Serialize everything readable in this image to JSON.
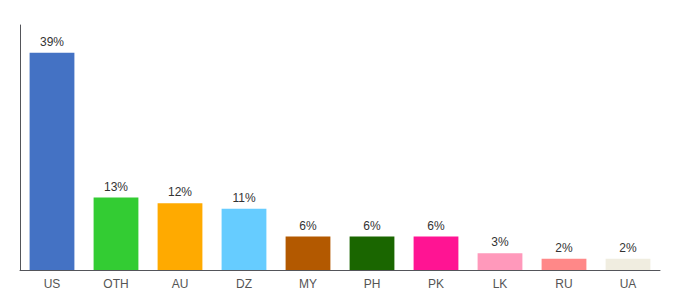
{
  "chart_data": {
    "type": "bar",
    "categories": [
      "US",
      "OTH",
      "AU",
      "DZ",
      "MY",
      "PH",
      "PK",
      "LK",
      "RU",
      "UA"
    ],
    "values": [
      39,
      13,
      12,
      11,
      6,
      6,
      6,
      3,
      2,
      2
    ],
    "value_labels": [
      "39%",
      "13%",
      "12%",
      "11%",
      "6%",
      "6%",
      "6%",
      "3%",
      "2%",
      "2%"
    ],
    "colors": [
      "#4472c4",
      "#33cc33",
      "#ffaa00",
      "#66ccff",
      "#b35900",
      "#1a6600",
      "#ff1493",
      "#ff99bb",
      "#ff8888",
      "#f0ede0"
    ],
    "ylim": [
      0,
      44
    ],
    "data_labels": true,
    "tick_labels": "x",
    "grid": false
  }
}
